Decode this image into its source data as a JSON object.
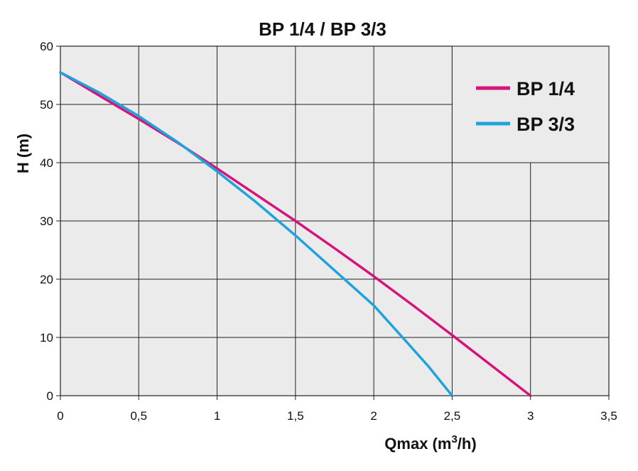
{
  "chart_data": {
    "type": "line",
    "title": "BP 1/4  /  BP 3/3",
    "xlabel_prefix": "Qmax (m",
    "xlabel_sup": "3",
    "xlabel_suffix": "/h)",
    "ylabel": "H (m)",
    "xlim": [
      0,
      3.5
    ],
    "ylim": [
      0,
      60
    ],
    "x_ticks": [
      0,
      0.5,
      1,
      1.5,
      2,
      2.5,
      3,
      3.5
    ],
    "x_tick_labels": [
      "0",
      "0,5",
      "1",
      "1,5",
      "2",
      "2,5",
      "3",
      "3,5"
    ],
    "y_ticks": [
      0,
      10,
      20,
      30,
      40,
      50,
      60
    ],
    "y_tick_labels": [
      "0",
      "10",
      "20",
      "30",
      "40",
      "50",
      "60"
    ],
    "grid": true,
    "legend_position": "top-right",
    "series": [
      {
        "name": "BP 1/4",
        "color": "#d6137a",
        "points": [
          [
            0,
            55.5
          ],
          [
            0.25,
            51.5
          ],
          [
            0.5,
            47.5
          ],
          [
            0.75,
            43.4
          ],
          [
            1,
            39
          ],
          [
            1.25,
            34.5
          ],
          [
            1.5,
            30
          ],
          [
            1.75,
            25.3
          ],
          [
            2,
            20.5
          ],
          [
            2.25,
            15.5
          ],
          [
            2.5,
            10.4
          ],
          [
            2.75,
            5.2
          ],
          [
            3,
            0
          ]
        ]
      },
      {
        "name": "BP 3/3",
        "color": "#1fa3dc",
        "points": [
          [
            0,
            55.5
          ],
          [
            0.25,
            52
          ],
          [
            0.5,
            48
          ],
          [
            0.75,
            43.5
          ],
          [
            1,
            38.5
          ],
          [
            1.25,
            33.2
          ],
          [
            1.5,
            27.5
          ],
          [
            1.75,
            21.5
          ],
          [
            2,
            15.5
          ],
          [
            2.2,
            9.5
          ],
          [
            2.35,
            5
          ],
          [
            2.5,
            0
          ]
        ]
      }
    ]
  }
}
